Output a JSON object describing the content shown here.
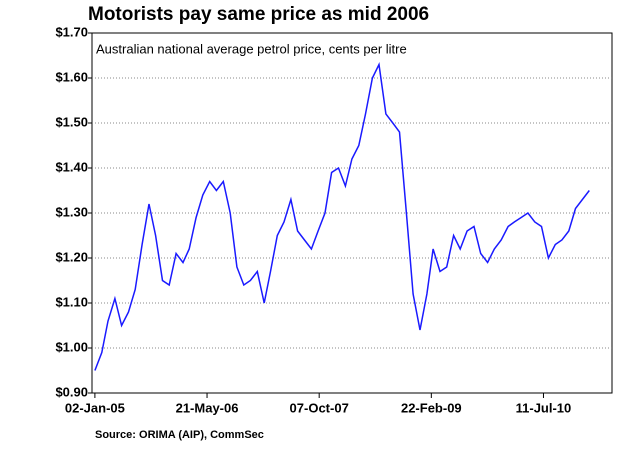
{
  "chart_data": {
    "type": "line",
    "title": "Motorists pay same price as mid 2006",
    "subtitle": "Australian national average petrol price, cents per litre",
    "source": "Source: ORIMA (AIP), CommSec",
    "x": [
      "2005-01-02",
      "2005-02-02",
      "2005-03-02",
      "2005-04-02",
      "2005-05-02",
      "2005-06-02",
      "2005-07-02",
      "2005-08-02",
      "2005-09-02",
      "2005-10-02",
      "2005-11-02",
      "2005-12-02",
      "2006-01-02",
      "2006-02-02",
      "2006-03-02",
      "2006-04-02",
      "2006-05-02",
      "2006-06-02",
      "2006-07-02",
      "2006-08-02",
      "2006-09-02",
      "2006-10-02",
      "2006-11-02",
      "2006-12-02",
      "2007-01-02",
      "2007-02-02",
      "2007-03-02",
      "2007-04-02",
      "2007-05-02",
      "2007-06-02",
      "2007-07-02",
      "2007-08-02",
      "2007-09-02",
      "2007-10-02",
      "2007-11-02",
      "2007-12-02",
      "2008-01-02",
      "2008-02-02",
      "2008-03-02",
      "2008-04-02",
      "2008-05-02",
      "2008-06-02",
      "2008-07-02",
      "2008-08-02",
      "2008-09-02",
      "2008-10-02",
      "2008-11-02",
      "2008-12-02",
      "2009-01-02",
      "2009-02-02",
      "2009-03-02",
      "2009-04-02",
      "2009-05-02",
      "2009-06-02",
      "2009-07-02",
      "2009-08-02",
      "2009-09-02",
      "2009-10-02",
      "2009-11-02",
      "2009-12-02",
      "2010-01-02",
      "2010-02-02",
      "2010-03-02",
      "2010-04-02",
      "2010-05-02",
      "2010-06-02",
      "2010-07-02",
      "2010-08-02",
      "2010-09-02",
      "2010-10-02",
      "2010-11-02",
      "2010-12-02",
      "2011-01-02",
      "2011-02-02"
    ],
    "series": [
      {
        "name": "Petrol price",
        "color": "#1a1aff",
        "values": [
          0.95,
          0.99,
          1.06,
          1.11,
          1.05,
          1.08,
          1.13,
          1.23,
          1.32,
          1.25,
          1.15,
          1.14,
          1.21,
          1.19,
          1.22,
          1.29,
          1.34,
          1.37,
          1.35,
          1.37,
          1.3,
          1.18,
          1.14,
          1.15,
          1.17,
          1.1,
          1.17,
          1.25,
          1.28,
          1.33,
          1.26,
          1.24,
          1.22,
          1.26,
          1.3,
          1.39,
          1.4,
          1.36,
          1.42,
          1.45,
          1.52,
          1.6,
          1.63,
          1.52,
          1.5,
          1.48,
          1.3,
          1.12,
          1.04,
          1.12,
          1.22,
          1.17,
          1.18,
          1.25,
          1.22,
          1.26,
          1.27,
          1.21,
          1.19,
          1.22,
          1.24,
          1.27,
          1.28,
          1.29,
          1.3,
          1.28,
          1.27,
          1.2,
          1.23,
          1.24,
          1.26,
          1.31,
          1.33,
          1.35
        ]
      }
    ],
    "xlim": [
      "2004-12-20",
      "2011-05-15"
    ],
    "xticks": [
      {
        "value": "2005-01-02",
        "label": "02-Jan-05"
      },
      {
        "value": "2006-05-21",
        "label": "21-May-06"
      },
      {
        "value": "2007-10-07",
        "label": "07-Oct-07"
      },
      {
        "value": "2009-02-22",
        "label": "22-Feb-09"
      },
      {
        "value": "2010-07-11",
        "label": "11-Jul-10"
      }
    ],
    "ylim": [
      0.9,
      1.7
    ],
    "yticks": [
      {
        "value": 0.9,
        "label": "$0.90"
      },
      {
        "value": 1.0,
        "label": "$1.00"
      },
      {
        "value": 1.1,
        "label": "$1.10"
      },
      {
        "value": 1.2,
        "label": "$1.20"
      },
      {
        "value": 1.3,
        "label": "$1.30"
      },
      {
        "value": 1.4,
        "label": "$1.40"
      },
      {
        "value": 1.5,
        "label": "$1.50"
      },
      {
        "value": 1.6,
        "label": "$1.60"
      },
      {
        "value": 1.7,
        "label": "$1.70"
      }
    ],
    "grid": true
  }
}
